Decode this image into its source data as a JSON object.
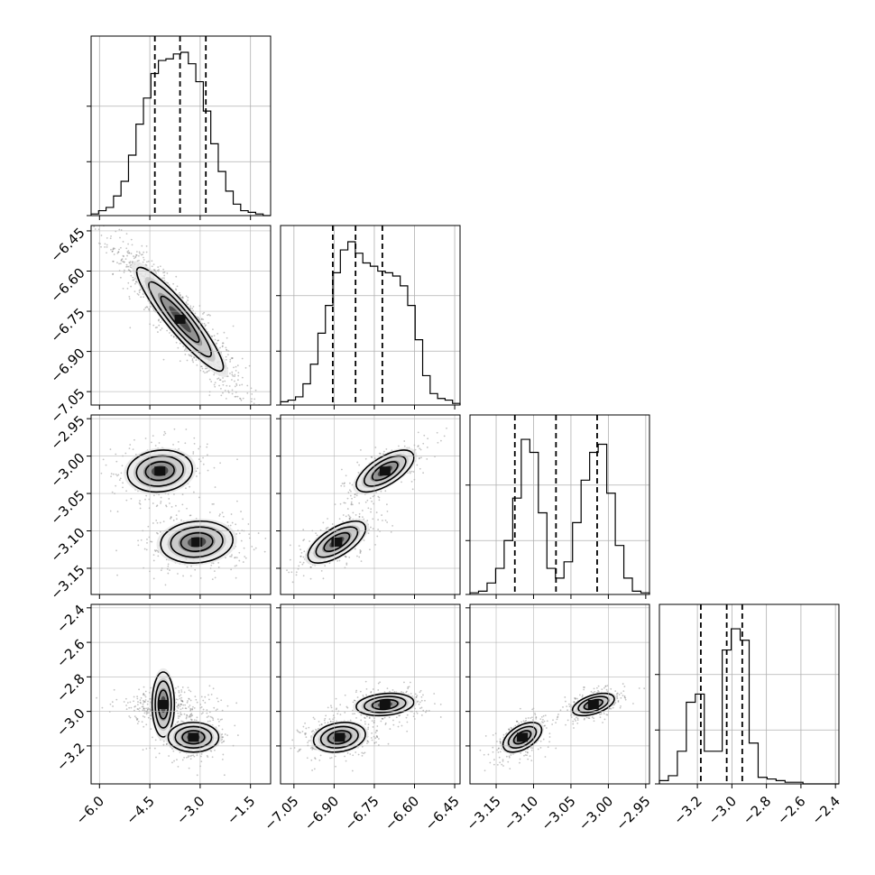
{
  "chart_data": {
    "type": "corner",
    "n_params": 4,
    "grid": true,
    "quantile_lines": "dashed",
    "params": [
      {
        "index": 0,
        "range": [
          -6.25,
          -0.9
        ],
        "ticks": [
          -6.0,
          -4.5,
          -3.0,
          -1.5
        ],
        "tick_labels": [
          "−6.0",
          "−4.5",
          "−3.0",
          "−1.5"
        ],
        "quantiles": [
          -4.35,
          -3.6,
          -2.83
        ],
        "hist": [
          0.01,
          0.03,
          0.05,
          0.12,
          0.21,
          0.37,
          0.56,
          0.72,
          0.87,
          0.95,
          0.96,
          0.99,
          1.0,
          0.93,
          0.82,
          0.64,
          0.44,
          0.27,
          0.15,
          0.07,
          0.03,
          0.02,
          0.01,
          0.0
        ]
      },
      {
        "index": 1,
        "range": [
          -7.1,
          -6.43
        ],
        "ticks": [
          -7.05,
          -6.9,
          -6.75,
          -6.6,
          -6.45
        ],
        "tick_labels": [
          "−7.05",
          "−6.90",
          "−6.75",
          "−6.60",
          "−6.45"
        ],
        "quantiles": [
          -6.905,
          -6.82,
          -6.72
        ],
        "hist": [
          0.02,
          0.03,
          0.05,
          0.13,
          0.25,
          0.44,
          0.61,
          0.81,
          0.95,
          1.0,
          0.93,
          0.87,
          0.85,
          0.82,
          0.81,
          0.79,
          0.73,
          0.61,
          0.4,
          0.18,
          0.07,
          0.04,
          0.03,
          0.01
        ]
      },
      {
        "index": 2,
        "range": [
          -3.185,
          -2.945
        ],
        "ticks": [
          -3.15,
          -3.1,
          -3.05,
          -3.0,
          -2.95
        ],
        "tick_labels": [
          "−3.15",
          "−3.10",
          "−3.05",
          "−3.00",
          "−2.95"
        ],
        "quantiles": [
          -3.125,
          -3.07,
          -3.015
        ],
        "hist": [
          0.01,
          0.02,
          0.07,
          0.16,
          0.33,
          0.59,
          0.95,
          0.87,
          0.5,
          0.16,
          0.1,
          0.2,
          0.44,
          0.7,
          0.87,
          0.92,
          0.62,
          0.3,
          0.1,
          0.02,
          0.01
        ]
      },
      {
        "index": 3,
        "range": [
          -3.42,
          -2.38
        ],
        "ticks": [
          -3.2,
          -3.0,
          -2.8,
          -2.6,
          -2.4
        ],
        "tick_labels": [
          "−3.2",
          "−3.0",
          "−2.8",
          "−2.6",
          "−2.4"
        ],
        "quantiles": [
          -3.18,
          -3.03,
          -2.94
        ],
        "hist": [
          0.02,
          0.05,
          0.2,
          0.5,
          0.55,
          0.2,
          0.2,
          0.82,
          0.95,
          0.88,
          0.25,
          0.04,
          0.03,
          0.02,
          0.01,
          0.01,
          0.0,
          0.0,
          0.0,
          0.0
        ]
      }
    ],
    "pairs": [
      {
        "x": 0,
        "y": 1,
        "modes": [
          {
            "cx": -3.6,
            "cy": -6.78,
            "sx": 0.6,
            "sy": 0.09,
            "rho": -0.92,
            "w": 1.0
          }
        ]
      },
      {
        "x": 0,
        "y": 2,
        "modes": [
          {
            "cx": -4.2,
            "cy": -3.02,
            "sx": 0.45,
            "sy": 0.013,
            "rho": 0.1,
            "w": 0.5
          },
          {
            "cx": -3.1,
            "cy": -3.115,
            "sx": 0.5,
            "sy": 0.013,
            "rho": 0.1,
            "w": 0.5
          }
        ]
      },
      {
        "x": 1,
        "y": 2,
        "modes": [
          {
            "cx": -6.71,
            "cy": -3.02,
            "sx": 0.05,
            "sy": 0.013,
            "rho": 0.65,
            "w": 0.5
          },
          {
            "cx": -6.89,
            "cy": -3.115,
            "sx": 0.05,
            "sy": 0.013,
            "rho": 0.65,
            "w": 0.5
          }
        ]
      },
      {
        "x": 0,
        "y": 3,
        "modes": [
          {
            "cx": -4.1,
            "cy": -2.96,
            "sx": 0.45,
            "sy": 0.03,
            "rho": 0.0,
            "w": 0.5
          },
          {
            "cx": -3.2,
            "cy": -3.15,
            "sx": 0.35,
            "sy": 0.04,
            "rho": 0.0,
            "w": 0.5
          }
        ]
      },
      {
        "x": 1,
        "y": 3,
        "modes": [
          {
            "cx": -6.71,
            "cy": -2.96,
            "sx": 0.05,
            "sy": 0.03,
            "rho": 0.2,
            "w": 0.5
          },
          {
            "cx": -6.88,
            "cy": -3.15,
            "sx": 0.045,
            "sy": 0.04,
            "rho": 0.2,
            "w": 0.5
          }
        ]
      },
      {
        "x": 2,
        "y": 3,
        "modes": [
          {
            "cx": -3.02,
            "cy": -2.96,
            "sx": 0.013,
            "sy": 0.03,
            "rho": 0.5,
            "w": 0.5
          },
          {
            "cx": -3.115,
            "cy": -3.15,
            "sx": 0.012,
            "sy": 0.04,
            "rho": 0.5,
            "w": 0.5
          }
        ]
      }
    ]
  }
}
